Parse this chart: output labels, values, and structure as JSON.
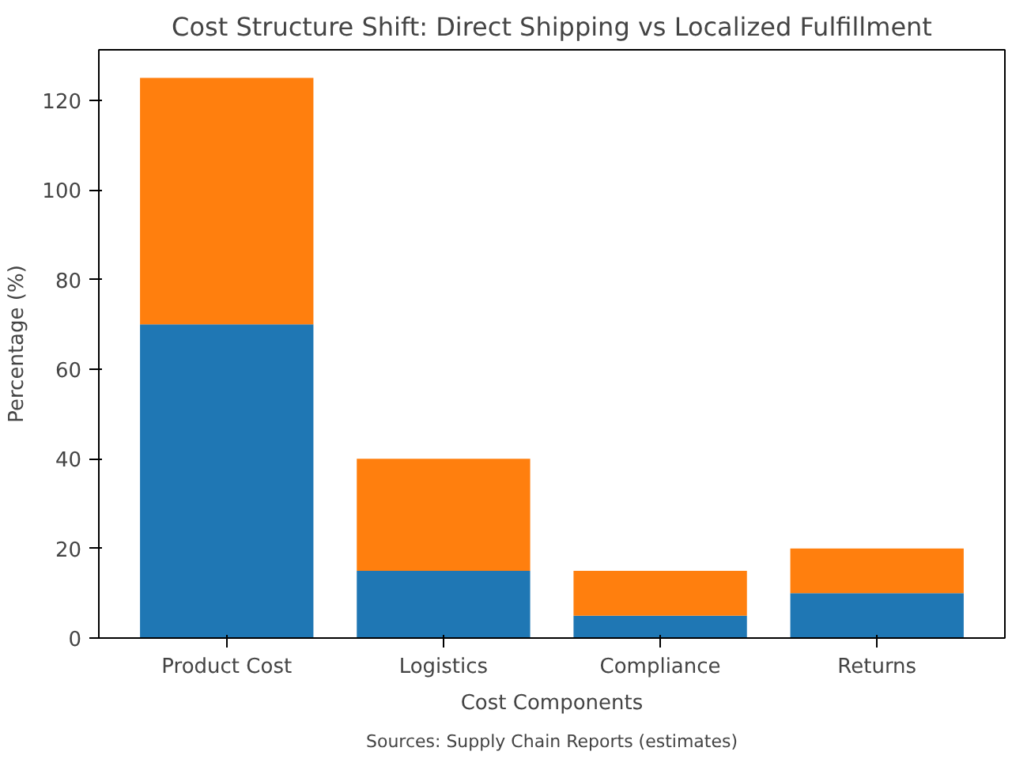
{
  "chart_data": {
    "type": "bar",
    "stacked": true,
    "title": "Cost Structure Shift: Direct Shipping vs Localized Fulfillment",
    "xlabel": "Cost Components",
    "ylabel": "Percentage (%)",
    "categories": [
      "Product Cost",
      "Logistics",
      "Compliance",
      "Returns"
    ],
    "series": [
      {
        "color": "#1f77b4",
        "values": [
          70,
          15,
          5,
          10
        ]
      },
      {
        "color": "#ff7f0e",
        "values": [
          55,
          25,
          10,
          10
        ]
      }
    ],
    "ylim": [
      0,
      131.25
    ],
    "yticks": [
      0,
      20,
      40,
      60,
      80,
      100,
      120
    ],
    "grid": false,
    "annotations": [
      "Sources: Supply Chain Reports (estimates)"
    ]
  }
}
